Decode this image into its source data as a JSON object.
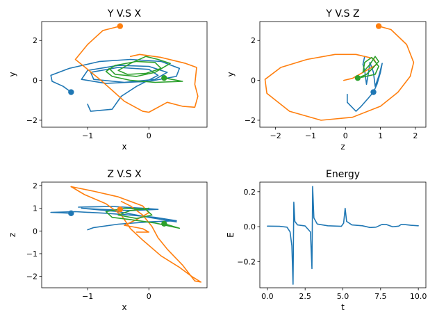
{
  "colors": {
    "blue": "#1f77b4",
    "orange": "#ff7f0e",
    "green": "#2ca02c"
  },
  "chart_data": [
    {
      "id": "yx",
      "type": "line",
      "title": "Y V.S X",
      "xlabel": "x",
      "ylabel": "y",
      "xlim": [
        -1.75,
        0.95
      ],
      "ylim": [
        -2.35,
        2.95
      ],
      "xticks": [
        -1,
        0
      ],
      "xtick_labels": [
        "−1",
        "0"
      ],
      "yticks": [
        -2,
        0,
        2
      ],
      "ytick_labels": [
        "−2",
        "0",
        "2"
      ],
      "grid": false,
      "legend": "none",
      "series": [
        {
          "color": "blue",
          "marker": [
            -1.27,
            -0.59
          ],
          "points": [
            [
              -1.27,
              -0.59
            ],
            [
              -1.4,
              -0.3
            ],
            [
              -1.58,
              -0.05
            ],
            [
              -1.6,
              0.25
            ],
            [
              -1.3,
              0.6
            ],
            [
              -0.8,
              0.95
            ],
            [
              -0.3,
              1.05
            ],
            [
              0.2,
              0.95
            ],
            [
              0.5,
              0.6
            ],
            [
              0.45,
              0.2
            ],
            [
              0.0,
              -0.05
            ],
            [
              -0.7,
              -0.15
            ],
            [
              -1.1,
              0.05
            ],
            [
              -1.0,
              0.5
            ],
            [
              -0.5,
              0.75
            ],
            [
              0.0,
              0.7
            ],
            [
              0.3,
              0.4
            ],
            [
              0.1,
              0.05
            ],
            [
              -0.4,
              -0.1
            ],
            [
              -0.9,
              0.05
            ],
            [
              -0.95,
              0.4
            ],
            [
              -0.5,
              0.65
            ],
            [
              0.0,
              0.55
            ],
            [
              0.15,
              0.25
            ],
            [
              -0.2,
              -0.3
            ],
            [
              -0.45,
              -0.8
            ],
            [
              -0.6,
              -1.45
            ],
            [
              -0.95,
              -1.55
            ],
            [
              -1.0,
              -1.2
            ]
          ]
        },
        {
          "color": "orange",
          "marker": [
            -0.47,
            2.72
          ],
          "points": [
            [
              -0.47,
              2.72
            ],
            [
              -0.75,
              2.5
            ],
            [
              -1.0,
              1.8
            ],
            [
              -1.2,
              1.05
            ],
            [
              -1.0,
              0.55
            ],
            [
              -0.8,
              0.05
            ],
            [
              -0.6,
              -0.5
            ],
            [
              -0.4,
              -1.05
            ],
            [
              -0.1,
              -1.55
            ],
            [
              0.0,
              -1.6
            ],
            [
              0.3,
              -1.1
            ],
            [
              0.55,
              -1.3
            ],
            [
              0.75,
              -1.35
            ],
            [
              0.8,
              -0.8
            ],
            [
              0.75,
              -0.2
            ],
            [
              0.78,
              0.65
            ],
            [
              0.6,
              0.85
            ],
            [
              0.2,
              1.15
            ],
            [
              -0.15,
              1.3
            ],
            [
              -0.3,
              1.2
            ]
          ]
        },
        {
          "color": "green",
          "marker": [
            0.25,
            0.12
          ],
          "points": [
            [
              0.25,
              0.12
            ],
            [
              0.55,
              -0.05
            ],
            [
              0.1,
              -0.1
            ],
            [
              -0.3,
              0.0
            ],
            [
              -0.6,
              0.2
            ],
            [
              -0.7,
              0.45
            ],
            [
              -0.55,
              0.75
            ],
            [
              -0.2,
              0.95
            ],
            [
              0.1,
              0.9
            ],
            [
              0.2,
              0.6
            ],
            [
              -0.05,
              0.35
            ],
            [
              -0.35,
              0.3
            ],
            [
              -0.5,
              0.5
            ],
            [
              -0.3,
              0.85
            ],
            [
              -0.05,
              1.2
            ],
            [
              0.15,
              1.05
            ],
            [
              0.35,
              0.85
            ],
            [
              0.1,
              0.4
            ],
            [
              -0.2,
              0.2
            ],
            [
              -0.55,
              0.3
            ],
            [
              -0.65,
              0.6
            ]
          ]
        }
      ]
    },
    {
      "id": "yz",
      "type": "line",
      "title": "Y V.S Z",
      "xlabel": "z",
      "ylabel": "y",
      "xlim": [
        -2.45,
        2.3
      ],
      "ylim": [
        -2.35,
        2.95
      ],
      "xticks": [
        -2,
        -1,
        0,
        1,
        2
      ],
      "xtick_labels": [
        "−2",
        "−1",
        "0",
        "1",
        "2"
      ],
      "yticks": [
        -2,
        0,
        2
      ],
      "ytick_labels": [
        "−2",
        "0",
        "2"
      ],
      "grid": false,
      "legend": "none",
      "series": [
        {
          "color": "blue",
          "marker": [
            0.8,
            -0.59
          ],
          "points": [
            [
              0.8,
              -0.59
            ],
            [
              0.65,
              -0.9
            ],
            [
              0.45,
              -1.3
            ],
            [
              0.3,
              -1.55
            ],
            [
              0.05,
              -1.1
            ],
            [
              0.05,
              -0.7
            ]
          ]
        },
        {
          "color": "blue",
          "marker": null,
          "points": [
            [
              0.8,
              -0.59
            ],
            [
              0.9,
              -0.2
            ],
            [
              1.0,
              0.4
            ],
            [
              1.05,
              0.85
            ],
            [
              0.95,
              0.2
            ],
            [
              0.85,
              -0.3
            ],
            [
              0.8,
              0.4
            ],
            [
              0.7,
              0.9
            ],
            [
              0.65,
              0.3
            ],
            [
              0.6,
              -0.2
            ],
            [
              0.55,
              0.5
            ],
            [
              0.5,
              0.8
            ],
            [
              0.55,
              1.2
            ]
          ]
        },
        {
          "color": "orange",
          "marker": [
            0.95,
            2.72
          ],
          "points": [
            [
              0.95,
              2.72
            ],
            [
              1.3,
              2.55
            ],
            [
              1.75,
              1.8
            ],
            [
              1.95,
              0.9
            ],
            [
              1.85,
              0.2
            ],
            [
              1.5,
              -0.6
            ],
            [
              1.0,
              -1.3
            ],
            [
              0.2,
              -1.85
            ],
            [
              -0.7,
              -2.0
            ],
            [
              -1.6,
              -1.55
            ],
            [
              -2.25,
              -0.65
            ],
            [
              -2.3,
              0.05
            ],
            [
              -1.85,
              0.65
            ],
            [
              -1.1,
              1.05
            ],
            [
              -0.3,
              1.3
            ],
            [
              0.3,
              1.3
            ],
            [
              0.8,
              1.1
            ],
            [
              0.9,
              0.8
            ],
            [
              0.6,
              0.5
            ],
            [
              0.2,
              0.1
            ],
            [
              -0.05,
              0.0
            ]
          ]
        },
        {
          "color": "green",
          "marker": [
            0.35,
            0.12
          ],
          "points": [
            [
              0.35,
              0.12
            ],
            [
              0.6,
              0.3
            ],
            [
              0.8,
              0.65
            ],
            [
              0.95,
              0.95
            ],
            [
              0.85,
              1.2
            ],
            [
              0.7,
              0.8
            ],
            [
              0.5,
              0.4
            ],
            [
              0.55,
              0.9
            ],
            [
              0.75,
              1.15
            ],
            [
              0.95,
              0.7
            ],
            [
              0.85,
              0.3
            ],
            [
              0.45,
              0.15
            ]
          ]
        }
      ]
    },
    {
      "id": "zx",
      "type": "line",
      "title": "Z V.S X",
      "xlabel": "x",
      "ylabel": "z",
      "xlim": [
        -1.75,
        0.95
      ],
      "ylim": [
        -2.5,
        2.15
      ],
      "xticks": [
        -1,
        0
      ],
      "xtick_labels": [
        "−1",
        "0"
      ],
      "yticks": [
        -2,
        -1,
        0,
        1,
        2
      ],
      "ytick_labels": [
        "−2",
        "−1",
        "0",
        "1",
        "2"
      ],
      "grid": false,
      "legend": "none",
      "series": [
        {
          "color": "blue",
          "marker": [
            -1.27,
            0.78
          ],
          "points": [
            [
              -1.27,
              0.78
            ],
            [
              -1.6,
              0.82
            ],
            [
              -1.2,
              0.85
            ],
            [
              -0.7,
              0.78
            ],
            [
              -0.3,
              0.7
            ],
            [
              0.1,
              0.6
            ],
            [
              0.45,
              0.45
            ],
            [
              0.0,
              0.4
            ],
            [
              -0.5,
              0.3
            ],
            [
              -0.9,
              0.15
            ],
            [
              -1.0,
              0.05
            ]
          ]
        },
        {
          "color": "blue",
          "marker": null,
          "points": [
            [
              -1.15,
              1.05
            ],
            [
              -0.6,
              1.08
            ],
            [
              -0.1,
              1.0
            ],
            [
              0.15,
              0.95
            ],
            [
              -0.3,
              0.9
            ],
            [
              -0.8,
              0.95
            ],
            [
              -1.1,
              1.0
            ],
            [
              -0.5,
              0.85
            ],
            [
              0.0,
              0.6
            ],
            [
              0.45,
              0.4
            ]
          ]
        },
        {
          "color": "orange",
          "marker": [
            -0.47,
            0.95
          ],
          "points": [
            [
              -1.27,
              1.95
            ],
            [
              -0.9,
              1.75
            ],
            [
              -0.5,
              1.5
            ],
            [
              -0.1,
              1.1
            ],
            [
              0.0,
              0.8
            ],
            [
              -0.2,
              0.5
            ],
            [
              -0.4,
              0.25
            ],
            [
              -0.1,
              0.1
            ],
            [
              0.0,
              -0.05
            ],
            [
              -0.2,
              -0.05
            ]
          ]
        },
        {
          "color": "orange",
          "marker": null,
          "points": [
            [
              -1.27,
              1.95
            ],
            [
              -1.05,
              1.6
            ],
            [
              -0.7,
              1.2
            ],
            [
              -0.45,
              0.7
            ],
            [
              -0.3,
              0.1
            ],
            [
              -0.1,
              -0.4
            ],
            [
              0.2,
              -1.1
            ],
            [
              0.5,
              -1.6
            ],
            [
              0.7,
              -2.0
            ],
            [
              0.85,
              -2.25
            ],
            [
              0.75,
              -2.2
            ],
            [
              0.55,
              -1.5
            ],
            [
              0.3,
              -0.8
            ],
            [
              0.15,
              -0.3
            ],
            [
              0.05,
              0.2
            ],
            [
              -0.1,
              0.7
            ],
            [
              -0.3,
              1.1
            ],
            [
              -0.45,
              1.3
            ]
          ]
        },
        {
          "color": "green",
          "marker": [
            0.25,
            0.32
          ],
          "points": [
            [
              0.25,
              0.32
            ],
            [
              0.5,
              0.12
            ],
            [
              0.1,
              0.35
            ],
            [
              -0.3,
              0.5
            ],
            [
              -0.6,
              0.6
            ],
            [
              -0.7,
              0.85
            ],
            [
              -0.4,
              1.0
            ],
            [
              -0.05,
              0.95
            ],
            [
              0.05,
              0.7
            ],
            [
              -0.2,
              0.55
            ],
            [
              -0.5,
              0.7
            ],
            [
              -0.3,
              0.9
            ],
            [
              0.0,
              1.0
            ]
          ]
        }
      ]
    },
    {
      "id": "energy",
      "type": "line",
      "title": "Energy",
      "xlabel": "t",
      "ylabel": "E",
      "xlim": [
        -0.5,
        10.5
      ],
      "ylim": [
        -0.35,
        0.255
      ],
      "xticks": [
        0,
        2.5,
        5,
        7.5,
        10
      ],
      "xtick_labels": [
        "0.0",
        "2.5",
        "5.0",
        "7.5",
        "10.0"
      ],
      "yticks": [
        -0.2,
        0,
        0.2
      ],
      "ytick_labels": [
        "−0.2",
        "0.0",
        "0.2"
      ],
      "grid": false,
      "legend": "none",
      "series": [
        {
          "color": "blue",
          "marker": null,
          "points": [
            [
              0,
              0.003
            ],
            [
              0.8,
              0.002
            ],
            [
              1.3,
              -0.003
            ],
            [
              1.5,
              -0.03
            ],
            [
              1.62,
              -0.11
            ],
            [
              1.7,
              -0.33
            ],
            [
              1.75,
              0.14
            ],
            [
              1.82,
              0.03
            ],
            [
              2.0,
              0.01
            ],
            [
              2.5,
              0.004
            ],
            [
              2.85,
              -0.03
            ],
            [
              2.95,
              -0.24
            ],
            [
              3.0,
              0.23
            ],
            [
              3.08,
              0.05
            ],
            [
              3.3,
              0.015
            ],
            [
              4.0,
              0.005
            ],
            [
              4.9,
              0.002
            ],
            [
              5.05,
              0.02
            ],
            [
              5.15,
              0.105
            ],
            [
              5.25,
              0.03
            ],
            [
              5.6,
              0.01
            ],
            [
              6.3,
              0.005
            ],
            [
              6.8,
              -0.005
            ],
            [
              7.2,
              -0.003
            ],
            [
              7.6,
              0.013
            ],
            [
              7.9,
              0.012
            ],
            [
              8.3,
              -0.001
            ],
            [
              8.7,
              0.003
            ],
            [
              8.85,
              0.012
            ],
            [
              9.1,
              0.012
            ],
            [
              9.5,
              0.008
            ],
            [
              10,
              0.005
            ]
          ]
        }
      ]
    }
  ]
}
